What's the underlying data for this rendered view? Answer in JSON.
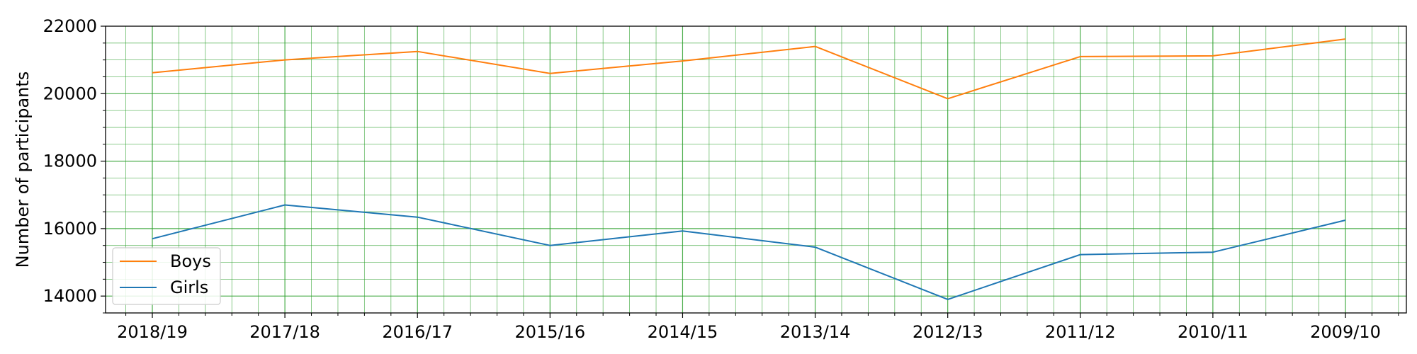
{
  "chart_data": {
    "type": "line",
    "title": "",
    "xlabel": "",
    "ylabel": "Number of participants",
    "categories": [
      "2018/19",
      "2017/18",
      "2016/17",
      "2015/16",
      "2014/15",
      "2013/14",
      "2012/13",
      "2011/12",
      "2010/11",
      "2009/10"
    ],
    "ylim": [
      13500,
      22000
    ],
    "yticks": [
      14000,
      16000,
      18000,
      20000,
      22000
    ],
    "grid": true,
    "legend_position": "lower-left",
    "series": [
      {
        "name": "Boys",
        "color": "#ff7f0e",
        "values": [
          20620,
          21000,
          21250,
          20600,
          20970,
          21400,
          19850,
          21100,
          21120,
          21620
        ]
      },
      {
        "name": "Girls",
        "color": "#1f77b4",
        "values": [
          15700,
          16700,
          16340,
          15500,
          15930,
          15450,
          13900,
          15230,
          15300,
          16250
        ]
      }
    ],
    "grid_color": "#2ca02c"
  }
}
